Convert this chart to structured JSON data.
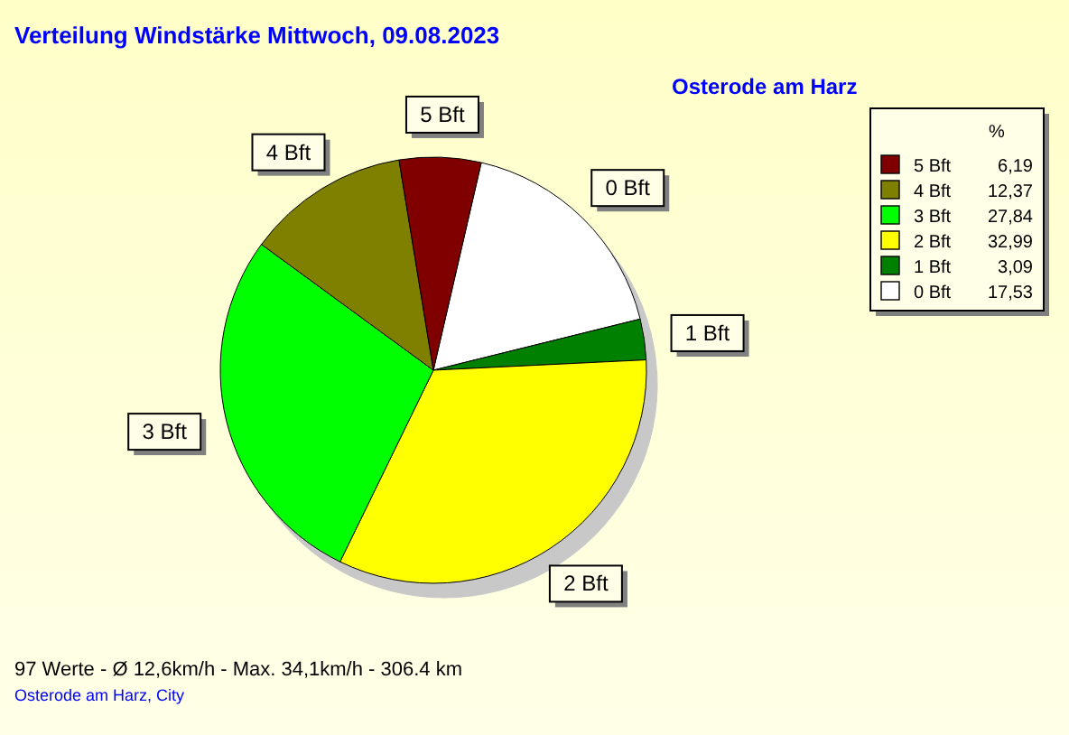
{
  "chart_data": {
    "type": "pie",
    "title": "Verteilung Windstärke  Mittwoch, 09.08.2023",
    "subtitle": "Osterode am Harz",
    "legend_title": "%",
    "legend": "top right",
    "categories": [
      "0 Bft",
      "1 Bft",
      "2 Bft",
      "3 Bft",
      "4 Bft",
      "5 Bft"
    ],
    "values": [
      17.53,
      3.09,
      32.99,
      27.84,
      12.37,
      6.19
    ],
    "value_labels": [
      "17,53",
      "3,09",
      "32,99",
      "27,84",
      "12,37",
      "6,19"
    ],
    "colors": [
      "#ffffff",
      "#008000",
      "#ffff00",
      "#00ff00",
      "#808000",
      "#800000"
    ],
    "annotations": [
      "97 Werte  -  Ø 12,6km/h  -  Max. 34,1km/h  -  306.4 km",
      "Osterode am Harz, City"
    ]
  }
}
